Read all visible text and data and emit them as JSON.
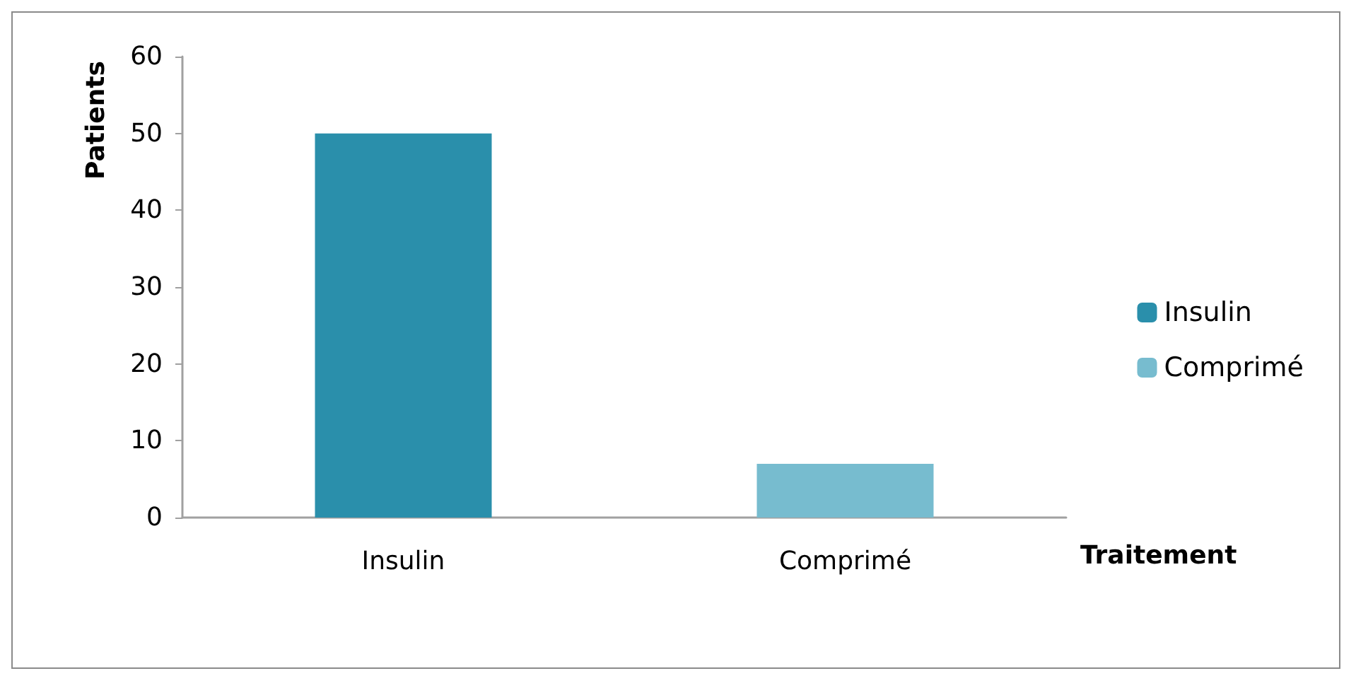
{
  "chart_data": {
    "type": "bar",
    "xlabel": "Traitement",
    "ylabel": "Patients",
    "categories": [
      "Insulin",
      "Comprimé"
    ],
    "series": [
      {
        "name": "Insulin",
        "color": "#2a8fab",
        "values": [
          50,
          null
        ]
      },
      {
        "name": "Comprimé",
        "color": "#77bccf",
        "values": [
          null,
          7
        ]
      }
    ],
    "ylim": [
      0,
      60
    ],
    "yticks": [
      0,
      10,
      20,
      30,
      40,
      50,
      60
    ],
    "grid": false,
    "legend": "right"
  }
}
